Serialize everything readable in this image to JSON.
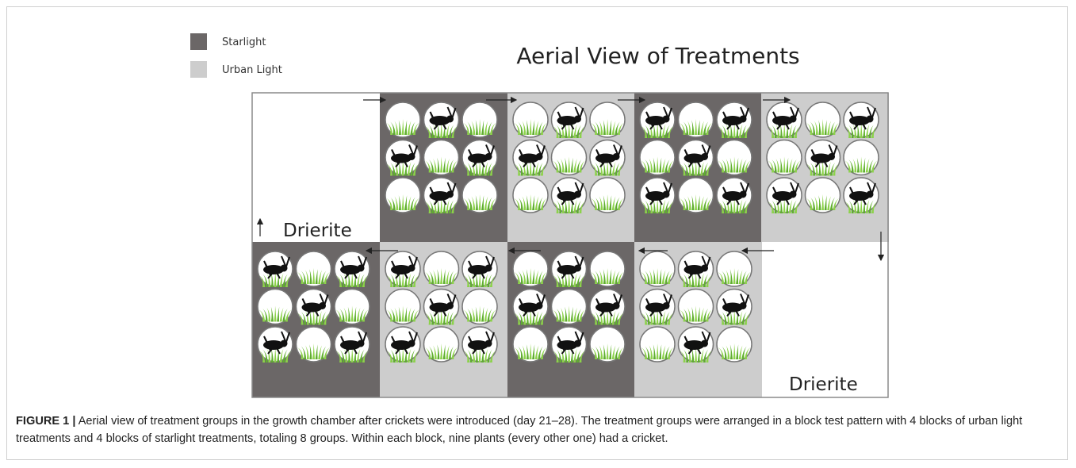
{
  "legend": [
    {
      "label": "Starlight"
    },
    {
      "label": "Urban Light"
    }
  ],
  "title": "Aerial View of Treatments",
  "drierite": [
    "Drierite",
    "Drierite"
  ],
  "caption": {
    "label": "FIGURE 1 |",
    "text": "Aerial view of treatment groups in the growth chamber after crickets were introduced (day 21–28). The treatment groups were arranged in a block test pattern with 4 blocks of urban light treatments and 4 blocks of starlight treatments, totaling 8 groups. Within each block, nine plants (every other one) had a cricket."
  }
}
